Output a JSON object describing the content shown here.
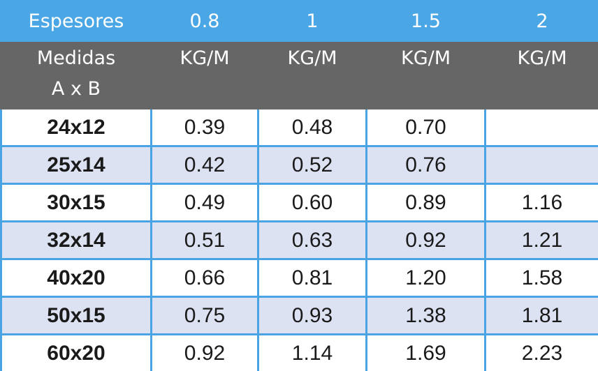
{
  "table": {
    "header_rows": [
      [
        "Espesores",
        "0.8",
        "1",
        "1.5",
        "2"
      ],
      [
        "Medidas\nA x B",
        "KG/M",
        "KG/M",
        "KG/M",
        "KG/M"
      ]
    ],
    "rows": [
      [
        "24x12",
        "0.39",
        "0.48",
        "0.70",
        null
      ],
      [
        "25x14",
        "0.42",
        "0.52",
        "0.76",
        null
      ],
      [
        "30x15",
        "0.49",
        "0.60",
        "0.89",
        "1.16"
      ],
      [
        "32x14",
        "0.51",
        "0.63",
        "0.92",
        "1.21"
      ],
      [
        "40x20",
        "0.66",
        "0.81",
        "1.20",
        "1.58"
      ],
      [
        "50x15",
        "0.75",
        "0.93",
        "1.38",
        "1.81"
      ],
      [
        "60x20",
        "0.92",
        "1.14",
        "1.69",
        "2.23"
      ]
    ]
  }
}
